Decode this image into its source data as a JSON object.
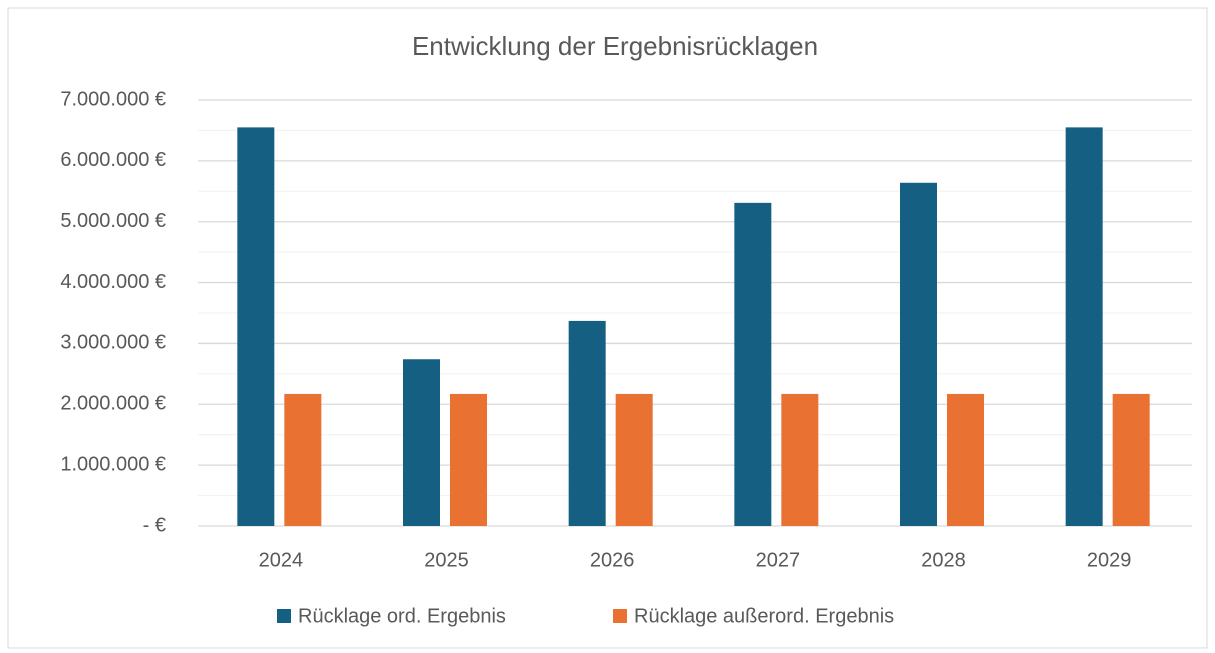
{
  "chart_data": {
    "type": "bar",
    "title": "Entwicklung der Ergebnisrücklagen",
    "categories": [
      "2024",
      "2025",
      "2026",
      "2027",
      "2028",
      "2029"
    ],
    "series": [
      {
        "name": "Rücklage ord. Ergebnis",
        "color": "#156082",
        "values": [
          6550000,
          2740000,
          3370000,
          5310000,
          5640000,
          6550000
        ]
      },
      {
        "name": "Rücklage außerord. Ergebnis",
        "color": "#e97132",
        "values": [
          2170000,
          2170000,
          2170000,
          2170000,
          2170000,
          2170000
        ]
      }
    ],
    "ylim": [
      0,
      7000000
    ],
    "yticks": [
      {
        "value": 0,
        "label": "-  €"
      },
      {
        "value": 1000000,
        "label": "1.000.000 €"
      },
      {
        "value": 2000000,
        "label": "2.000.000 €"
      },
      {
        "value": 3000000,
        "label": "3.000.000 €"
      },
      {
        "value": 4000000,
        "label": "4.000.000 €"
      },
      {
        "value": 5000000,
        "label": "5.000.000 €"
      },
      {
        "value": 6000000,
        "label": "6.000.000 €"
      },
      {
        "value": 7000000,
        "label": "7.000.000 €"
      }
    ],
    "grid": true,
    "minor_grid": true,
    "legend": "bottom"
  }
}
